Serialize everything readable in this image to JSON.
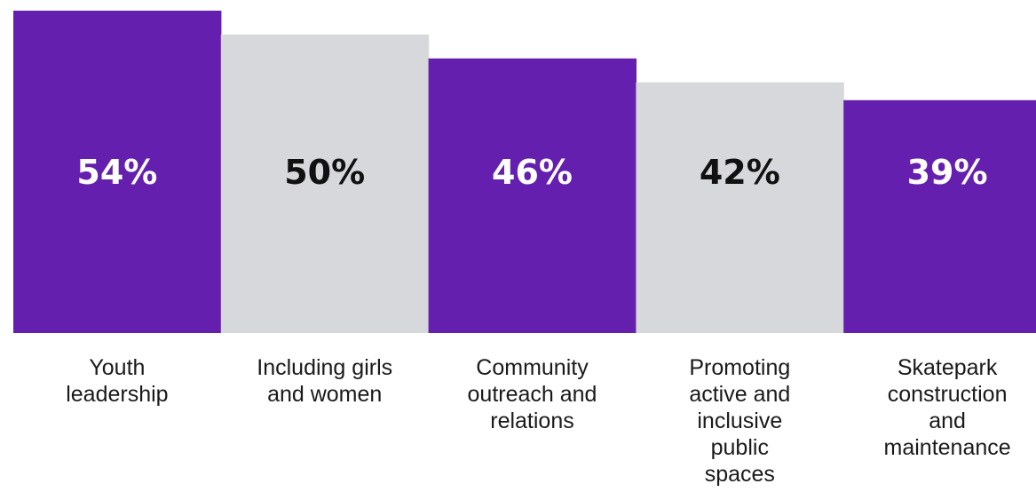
{
  "chart_data": {
    "type": "bar",
    "categories": [
      "Youth leadership",
      "Including girls and women",
      "Community outreach and relations",
      "Promoting active and inclusive public spaces",
      "Skatepark construction and maintenance"
    ],
    "category_label_lines": [
      [
        "Youth",
        "leadership"
      ],
      [
        "Including girls",
        "and women"
      ],
      [
        "Community",
        "outreach and",
        "relations"
      ],
      [
        "Promoting",
        "active and",
        "inclusive",
        "public",
        "spaces"
      ],
      [
        "Skatepark",
        "construction",
        "and",
        "maintenance"
      ]
    ],
    "values": [
      54,
      50,
      46,
      42,
      39
    ],
    "value_labels": [
      "54%",
      "50%",
      "46%",
      "42%",
      "39%"
    ],
    "ylim": [
      0,
      54
    ],
    "grid": false,
    "legend": "none",
    "colors": {
      "bar_primary": "#651fae",
      "bar_secondary": "#d6d8dc",
      "label_on_primary": "#ffffff",
      "label_on_secondary": "#111111"
    },
    "bar_color_pattern": [
      "primary",
      "secondary",
      "primary",
      "secondary",
      "primary"
    ]
  }
}
